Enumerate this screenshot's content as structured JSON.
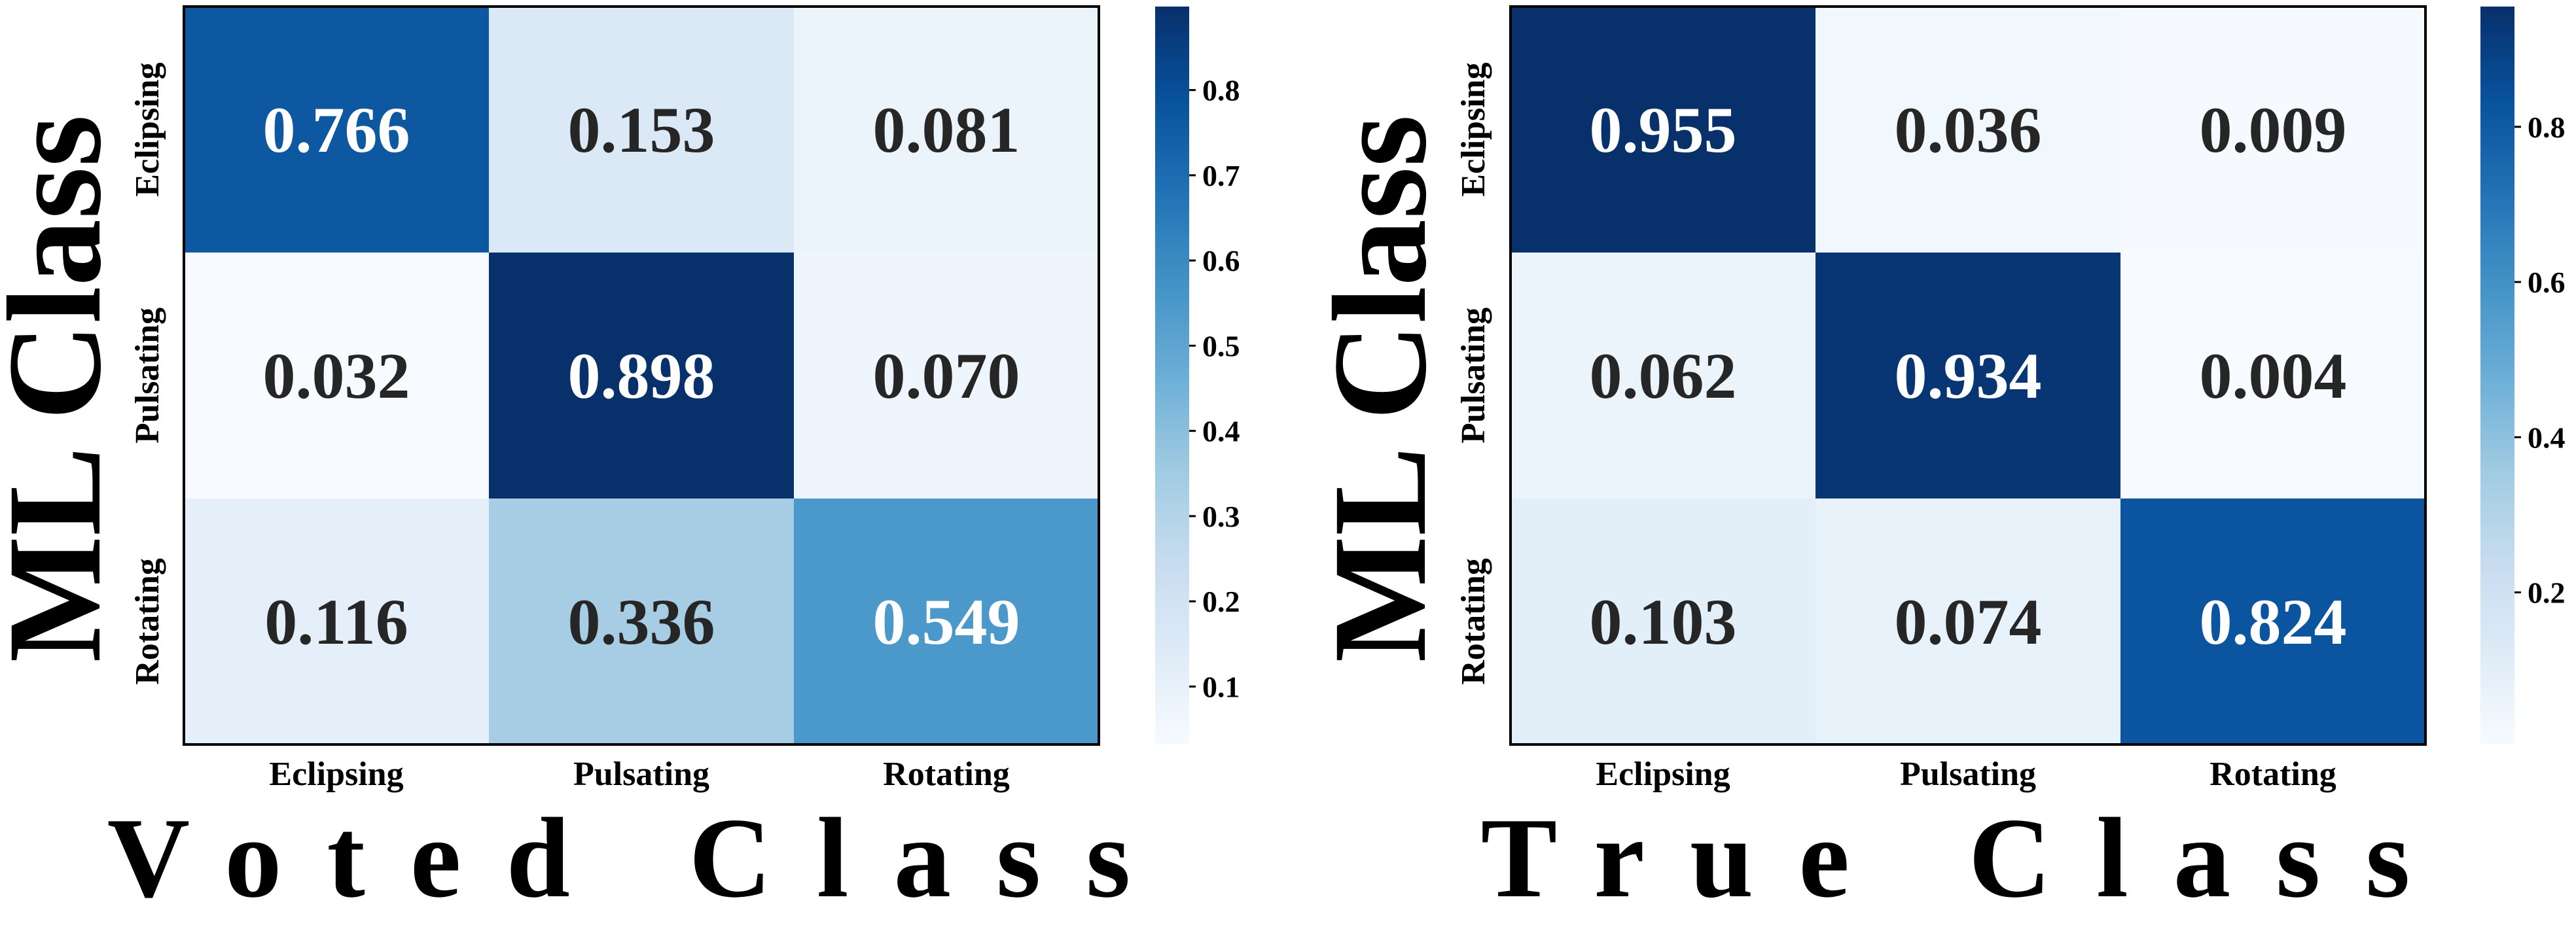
{
  "chart_data": [
    {
      "type": "heatmap",
      "rows": [
        "Eclipsing",
        "Pulsating",
        "Rotating"
      ],
      "columns": [
        "Eclipsing",
        "Pulsating",
        "Rotating"
      ],
      "values": [
        [
          0.766,
          0.153,
          0.081
        ],
        [
          0.032,
          0.898,
          0.07
        ],
        [
          0.116,
          0.336,
          0.549
        ]
      ],
      "cell_labels": [
        [
          "0.766",
          "0.153",
          "0.081"
        ],
        [
          "0.032",
          "0.898",
          "0.070"
        ],
        [
          "0.116",
          "0.336",
          "0.549"
        ]
      ],
      "ylabel": "ML Class",
      "xlabel": "Voted Class",
      "colormap": "Blues",
      "colorbar": {
        "min": 0.032,
        "max": 0.898,
        "ticks": [
          0.1,
          0.2,
          0.3,
          0.4,
          0.5,
          0.6,
          0.7,
          0.8
        ],
        "tick_labels": [
          "0.1",
          "0.2",
          "0.3",
          "0.4",
          "0.5",
          "0.6",
          "0.7",
          "0.8"
        ]
      },
      "grid": false
    },
    {
      "type": "heatmap",
      "rows": [
        "Eclipsing",
        "Pulsating",
        "Rotating"
      ],
      "columns": [
        "Eclipsing",
        "Pulsating",
        "Rotating"
      ],
      "values": [
        [
          0.955,
          0.036,
          0.009
        ],
        [
          0.062,
          0.934,
          0.004
        ],
        [
          0.103,
          0.074,
          0.824
        ]
      ],
      "cell_labels": [
        [
          "0.955",
          "0.036",
          "0.009"
        ],
        [
          "0.062",
          "0.934",
          "0.004"
        ],
        [
          "0.103",
          "0.074",
          "0.824"
        ]
      ],
      "ylabel": "ML Class",
      "xlabel": "True Class",
      "colormap": "Blues",
      "colorbar": {
        "min": 0.004,
        "max": 0.955,
        "ticks": [
          0.2,
          0.4,
          0.6,
          0.8
        ],
        "tick_labels": [
          "0.2",
          "0.4",
          "0.6",
          "0.8"
        ]
      },
      "grid": false
    }
  ],
  "colors": {
    "axis": "#000000",
    "text_dark": "#262626",
    "text_light": "#ffffff"
  }
}
